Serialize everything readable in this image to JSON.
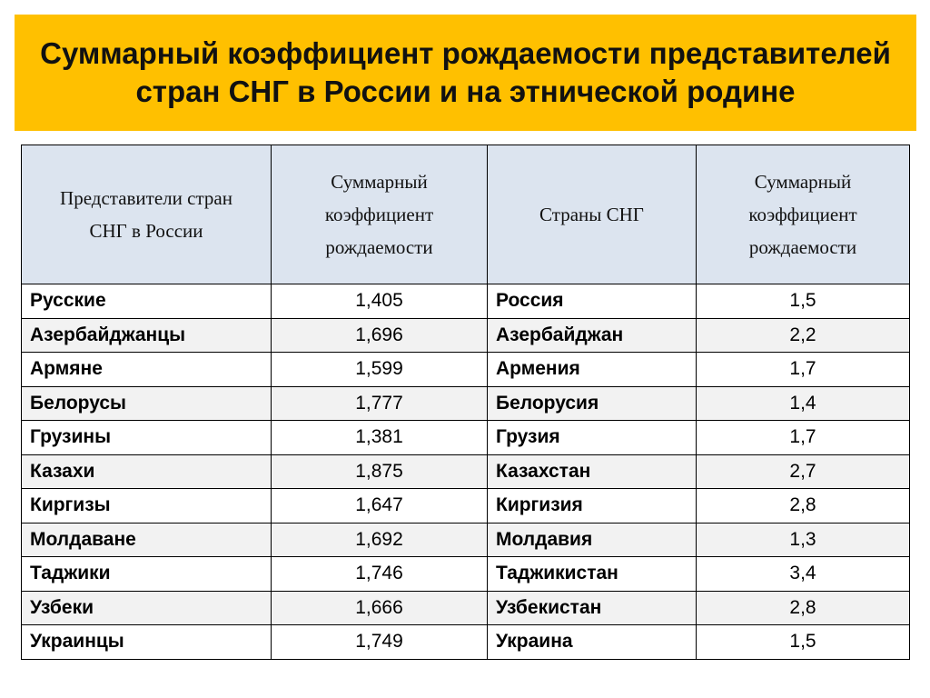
{
  "title": "Суммарный коэффициент рождаемости представителей\nстран СНГ в России и на этнической родине",
  "colors": {
    "banner": "#FFC000",
    "header_bg": "#DCE4EF",
    "row_alt": "#F2F2F2"
  },
  "table": {
    "headers": [
      "Представители стран\nСНГ в России",
      "Суммарный\nкоэффициент\nрождаемости",
      "Страны СНГ",
      "Суммарный\nкоэффициент\nрождаемости"
    ],
    "rows": [
      {
        "group": "Русские",
        "tfr_russia": "1,405",
        "country": "Россия",
        "tfr_home": "1,5"
      },
      {
        "group": "Азербайджанцы",
        "tfr_russia": "1,696",
        "country": "Азербайджан",
        "tfr_home": "2,2"
      },
      {
        "group": "Армяне",
        "tfr_russia": "1,599",
        "country": "Армения",
        "tfr_home": "1,7"
      },
      {
        "group": "Белорусы",
        "tfr_russia": "1,777",
        "country": "Белорусия",
        "tfr_home": "1,4"
      },
      {
        "group": "Грузины",
        "tfr_russia": "1,381",
        "country": "Грузия",
        "tfr_home": "1,7"
      },
      {
        "group": "Казахи",
        "tfr_russia": "1,875",
        "country": "Казахстан",
        "tfr_home": "2,7"
      },
      {
        "group": "Киргизы",
        "tfr_russia": "1,647",
        "country": "Киргизия",
        "tfr_home": "2,8"
      },
      {
        "group": "Молдаване",
        "tfr_russia": "1,692",
        "country": "Молдавия",
        "tfr_home": "1,3"
      },
      {
        "group": "Таджики",
        "tfr_russia": "1,746",
        "country": "Таджикистан",
        "tfr_home": "3,4"
      },
      {
        "group": "Узбеки",
        "tfr_russia": "1,666",
        "country": "Узбекистан",
        "tfr_home": "2,8"
      },
      {
        "group": "Украинцы",
        "tfr_russia": "1,749",
        "country": "Украина",
        "tfr_home": "1,5"
      }
    ]
  }
}
